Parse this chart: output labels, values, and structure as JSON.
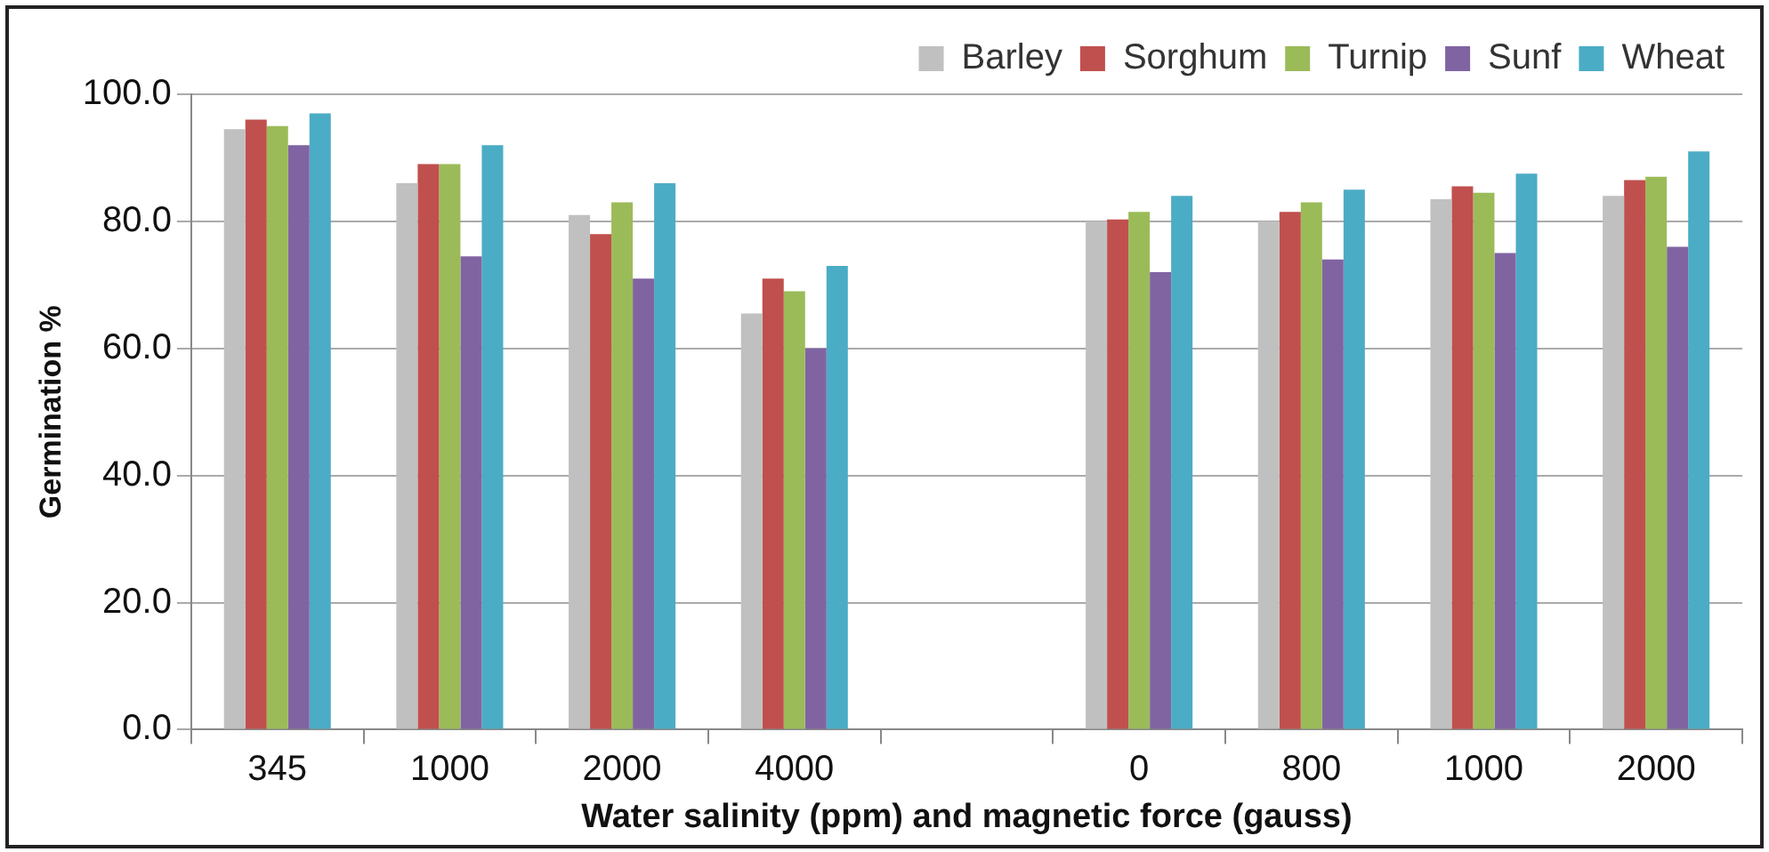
{
  "chart_data": {
    "type": "bar",
    "xlabel": "Water salinity (ppm) and magnetic force (gauss)",
    "ylabel": "Germination %",
    "categories": [
      "345",
      "1000",
      "2000",
      "4000",
      null,
      "0",
      "800",
      "1000",
      "2000"
    ],
    "series": [
      {
        "name": "Barley",
        "color": "#c0c0c0",
        "values": [
          94.5,
          86,
          81,
          65.5,
          null,
          80,
          80,
          83.5,
          84
        ]
      },
      {
        "name": "Sorghum",
        "color": "#c0504d",
        "values": [
          96,
          89,
          78,
          71,
          null,
          80.3,
          81.5,
          85.5,
          86.5
        ]
      },
      {
        "name": "Turnip",
        "color": "#9bbb59",
        "values": [
          95,
          89,
          83,
          69,
          null,
          81.5,
          83,
          84.5,
          87
        ]
      },
      {
        "name": "Sunf",
        "color": "#8064a2",
        "values": [
          92,
          74.5,
          71,
          60,
          null,
          72,
          74,
          75,
          76
        ]
      },
      {
        "name": "Wheat",
        "color": "#4bacc6",
        "values": [
          97,
          92,
          86,
          73,
          null,
          84,
          85,
          87.5,
          91
        ]
      }
    ],
    "ylim": [
      0,
      100
    ],
    "yticks": [
      {
        "value": 0,
        "label": "0.0"
      },
      {
        "value": 20,
        "label": "20.0"
      },
      {
        "value": 40,
        "label": "40.0"
      },
      {
        "value": 60,
        "label": "60.0"
      },
      {
        "value": 80,
        "label": "80.0"
      },
      {
        "value": 100,
        "label": "100.0"
      }
    ],
    "grid": "y",
    "legend": "top right"
  }
}
